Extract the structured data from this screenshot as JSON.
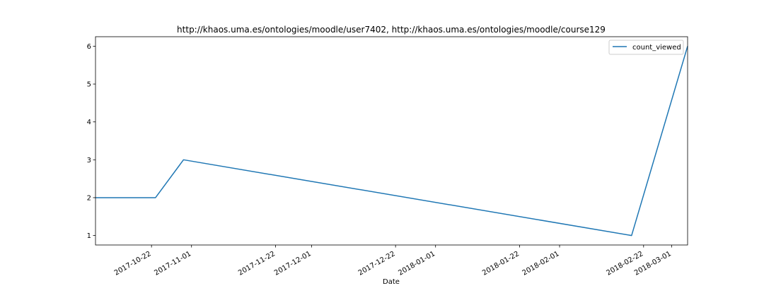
{
  "chart_data": {
    "type": "line",
    "title": "http://khaos.uma.es/ontologies/moodle/user7402, http://khaos.uma.es/ontologies/moodle/course129",
    "xlabel": "Date",
    "ylabel": "",
    "x_is_date": true,
    "xlim": [
      "2017-10-08",
      "2018-03-05"
    ],
    "ylim": [
      0.75,
      6.25
    ],
    "yticks": [
      1,
      2,
      3,
      4,
      5,
      6
    ],
    "xticks": [
      {
        "date": "2017-10-22",
        "label": "2017-10-22"
      },
      {
        "date": "2017-11-01",
        "label": "2017-11-01"
      },
      {
        "date": "2017-11-22",
        "label": "2017-11-22"
      },
      {
        "date": "2017-12-01",
        "label": "2017-12-01"
      },
      {
        "date": "2017-12-22",
        "label": "2017-12-22"
      },
      {
        "date": "2018-01-01",
        "label": "2018-01-01"
      },
      {
        "date": "2018-01-22",
        "label": "2018-01-22"
      },
      {
        "date": "2018-02-01",
        "label": "2018-02-01"
      },
      {
        "date": "2018-02-22",
        "label": "2018-02-22"
      },
      {
        "date": "2018-03-01",
        "label": "2018-03-01"
      }
    ],
    "series": [
      {
        "name": "count_viewed",
        "color": "#1f77b4",
        "x": [
          "2017-10-08",
          "2017-10-23",
          "2017-10-30",
          "2018-02-19",
          "2018-03-05"
        ],
        "y": [
          2,
          2,
          3,
          1,
          6
        ]
      }
    ],
    "legend": "top-right",
    "grid": false
  }
}
